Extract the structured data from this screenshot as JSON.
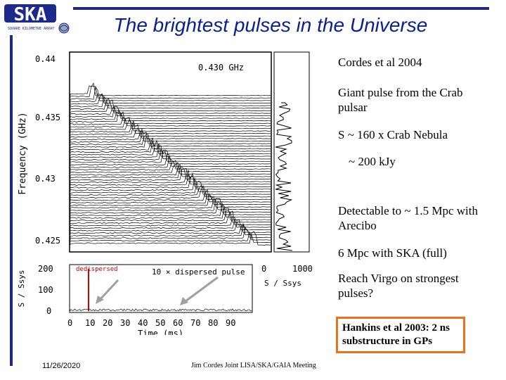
{
  "header": {
    "logo_text": "SKA",
    "logo_subtext": "SQUARE KILOMETRE ARRAY",
    "title": "The brightest pulses in the Universe"
  },
  "figure": {
    "freq_label": "0.430 GHz",
    "y_axis_label": "Frequency (GHz)",
    "y_ticks": [
      "0.44",
      "0.435",
      "0.43",
      "0.425"
    ],
    "side_axis_ticks": [
      "0",
      "1000"
    ],
    "side_axis_label": "S / Ssys",
    "lower_y_label": "S / Ssys",
    "lower_y_ticks": [
      "200",
      "100",
      "0"
    ],
    "lower_x_ticks": [
      "0",
      "10",
      "20",
      "30",
      "40",
      "50",
      "60",
      "70",
      "80",
      "90"
    ],
    "lower_x_label": "Time (ms)",
    "dedispersed_label": "dedispersed",
    "dispersed_label": "10 × dispersed pulse"
  },
  "bullets": [
    {
      "text": "Cordes et al 2004"
    },
    {
      "text": "Giant pulse from the Crab pulsar"
    },
    {
      "text": "S ~ 160 x Crab Nebula"
    },
    {
      "text": "~ 200 kJy"
    },
    {
      "text": "Detectable to ~ 1.5 Mpc with Arecibo"
    },
    {
      "text": "6 Mpc with SKA (full)"
    },
    {
      "text": "Reach Virgo on strongest pulses?"
    }
  ],
  "note": "Hankins et al 2003:  2 ns substructure in GPs",
  "footer": {
    "date": "11/26/2020",
    "meeting": "Jim Cordes  Joint LISA/SKA/GAIA Meeting"
  },
  "colors": {
    "title": "#0a1f8f",
    "rule": "#1d2a8c",
    "note_border": "#e8731b",
    "dedispersed": "#cc0000",
    "arrows": "#a0a0a0"
  }
}
